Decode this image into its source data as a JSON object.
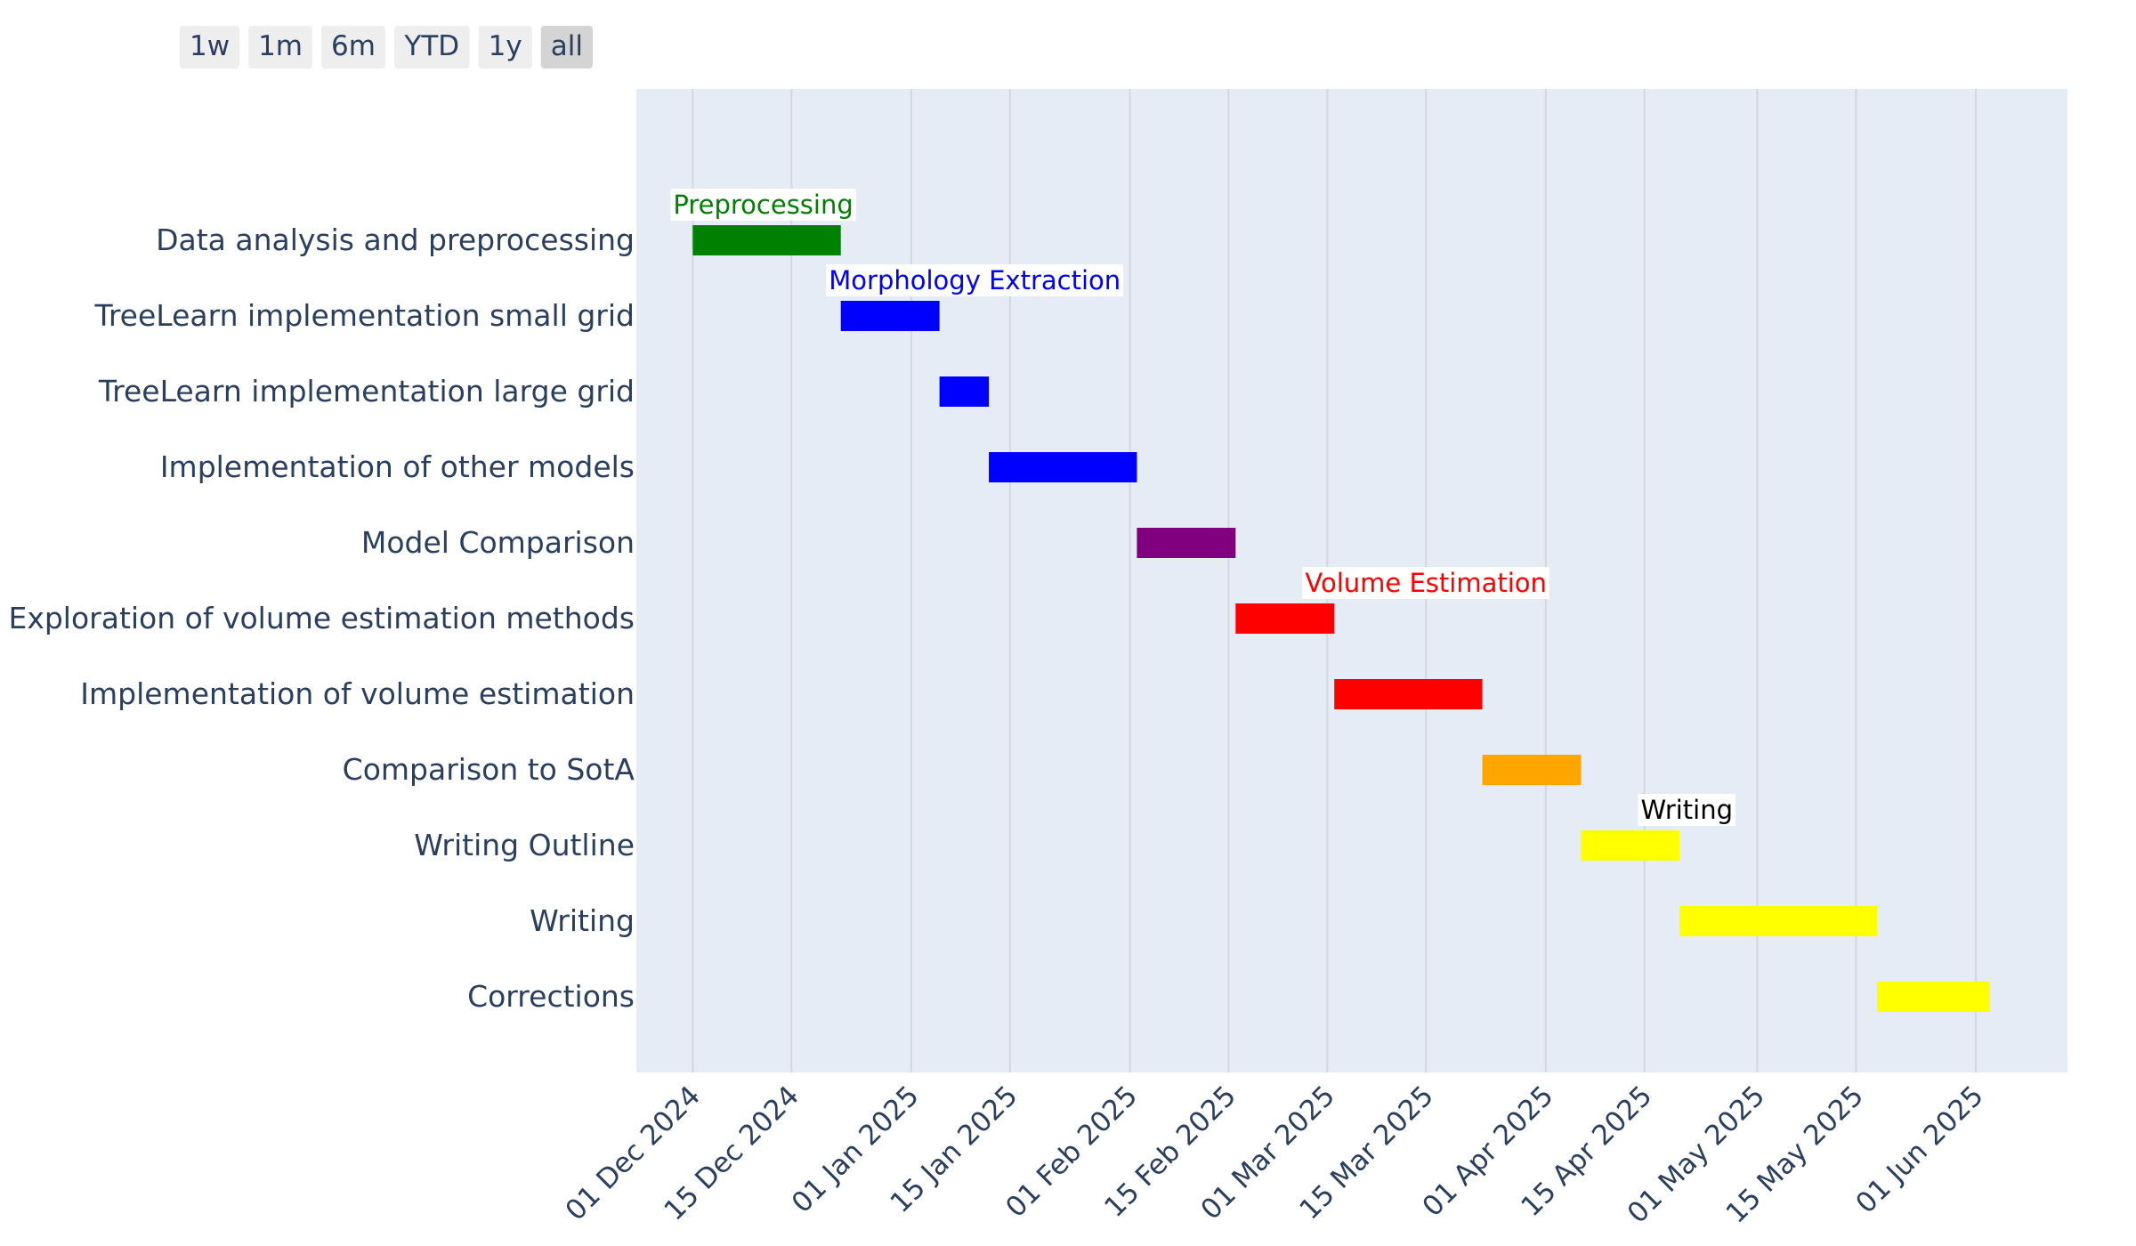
{
  "range_selector": {
    "buttons": [
      {
        "label": "1w",
        "active": false
      },
      {
        "label": "1m",
        "active": false
      },
      {
        "label": "6m",
        "active": false
      },
      {
        "label": "YTD",
        "active": false
      },
      {
        "label": "1y",
        "active": false
      },
      {
        "label": "all",
        "active": true
      }
    ]
  },
  "chart_data": {
    "type": "gantt",
    "title": "",
    "xlabel": "",
    "ylabel": "",
    "x_axis": {
      "type": "date",
      "range": [
        "2024-11-23",
        "2025-06-14"
      ],
      "tick_values": [
        "2024-12-01",
        "2024-12-15",
        "2025-01-01",
        "2025-01-15",
        "2025-02-01",
        "2025-02-15",
        "2025-03-01",
        "2025-03-15",
        "2025-04-01",
        "2025-04-15",
        "2025-05-01",
        "2025-05-15",
        "2025-06-01"
      ],
      "tick_labels": [
        "01 Dec 2024",
        "15 Dec 2024",
        "01 Jan 2025",
        "15 Jan 2025",
        "01 Feb 2025",
        "15 Feb 2025",
        "01 Mar 2025",
        "15 Mar 2025",
        "01 Apr 2025",
        "15 Apr 2025",
        "01 May 2025",
        "15 May 2025",
        "01 Jun 2025"
      ],
      "tick_angle": -45,
      "grid": true
    },
    "tasks": [
      {
        "name": "Data analysis and preprocessing",
        "start": "2024-12-01",
        "end": "2024-12-22",
        "color": "#008000"
      },
      {
        "name": "TreeLearn implementation small grid",
        "start": "2024-12-22",
        "end": "2025-01-05",
        "color": "#0000ff"
      },
      {
        "name": "TreeLearn implementation large grid",
        "start": "2025-01-05",
        "end": "2025-01-12",
        "color": "#0000ff"
      },
      {
        "name": "Implementation of other models",
        "start": "2025-01-12",
        "end": "2025-02-02",
        "color": "#0000ff"
      },
      {
        "name": "Model Comparison",
        "start": "2025-02-02",
        "end": "2025-02-16",
        "color": "#800080"
      },
      {
        "name": "Exploration of volume estimation methods",
        "start": "2025-02-16",
        "end": "2025-03-02",
        "color": "#ff0000"
      },
      {
        "name": "Implementation of volume estimation",
        "start": "2025-03-02",
        "end": "2025-03-23",
        "color": "#ff0000"
      },
      {
        "name": "Comparison to SotA",
        "start": "2025-03-23",
        "end": "2025-04-06",
        "color": "#ffa500"
      },
      {
        "name": "Writing Outline",
        "start": "2025-04-06",
        "end": "2025-04-20",
        "color": "#ffff00"
      },
      {
        "name": "Writing",
        "start": "2025-04-20",
        "end": "2025-05-18",
        "color": "#ffff00"
      },
      {
        "name": "Corrections",
        "start": "2025-05-18",
        "end": "2025-06-03",
        "color": "#ffff00"
      }
    ],
    "annotations": [
      {
        "text": "Preprocessing",
        "task": "Data analysis and preprocessing",
        "at": "2024-12-11",
        "color": "#008000"
      },
      {
        "text": "Morphology Extraction",
        "task": "TreeLearn implementation small grid",
        "at": "2025-01-10",
        "color": "#0000ff"
      },
      {
        "text": "Volume Estimation",
        "task": "Exploration of volume estimation methods",
        "at": "2025-03-15",
        "color": "#ff0000"
      },
      {
        "text": "Writing",
        "task": "Writing Outline",
        "at": "2025-04-21",
        "color": "#000000"
      }
    ],
    "plot_background": "#e5ecf6"
  }
}
